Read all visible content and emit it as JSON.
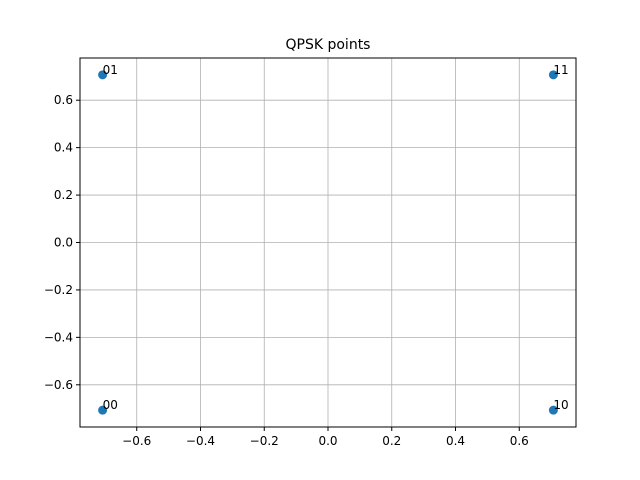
{
  "chart_data": {
    "type": "scatter",
    "title": "QPSK points",
    "xlabel": "",
    "ylabel": "",
    "xlim": [
      -0.778,
      0.778
    ],
    "ylim": [
      -0.778,
      0.778
    ],
    "xticks": [
      -0.6,
      -0.4,
      -0.2,
      0.0,
      0.2,
      0.4,
      0.6
    ],
    "yticks": [
      -0.6,
      -0.4,
      -0.2,
      0.0,
      0.2,
      0.4,
      0.6
    ],
    "xtick_labels": [
      "−0.6",
      "−0.4",
      "−0.2",
      "0.0",
      "0.2",
      "0.4",
      "0.6"
    ],
    "ytick_labels": [
      "−0.6",
      "−0.4",
      "−0.2",
      "0.0",
      "0.2",
      "0.4",
      "0.6"
    ],
    "grid": true,
    "points": [
      {
        "x": -0.7071,
        "y": -0.7071,
        "label": "00"
      },
      {
        "x": -0.7071,
        "y": 0.7071,
        "label": "01"
      },
      {
        "x": 0.7071,
        "y": 0.7071,
        "label": "11"
      },
      {
        "x": 0.7071,
        "y": -0.7071,
        "label": "10"
      }
    ],
    "color": "#1f77b4"
  }
}
